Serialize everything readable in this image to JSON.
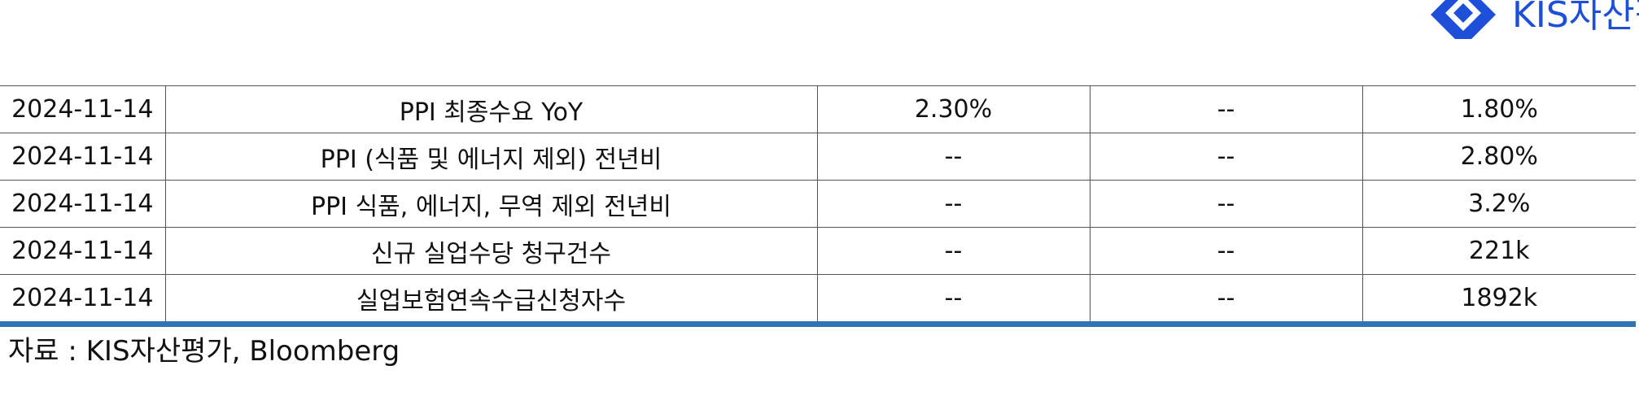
{
  "logo": {
    "text": "KIS자산평가",
    "icon": "kis-diamond-logo-icon",
    "color": "#1d4fd8"
  },
  "table": {
    "rows": [
      [
        "2024-11-14",
        "PPI 최종수요 YoY",
        "2.30%",
        "--",
        "1.80%"
      ],
      [
        "2024-11-14",
        "PPI (식품 및 에너지 제외) 전년비",
        "--",
        "--",
        "2.80%"
      ],
      [
        "2024-11-14",
        "PPI 식품, 에너지, 무역 제외 전년비",
        "--",
        "--",
        "3.2%"
      ],
      [
        "2024-11-14",
        "신규 실업수당 청구건수",
        "--",
        "--",
        "221k"
      ],
      [
        "2024-11-14",
        "실업보험연속수급신청자수",
        "--",
        "--",
        "1892k"
      ]
    ],
    "bottom_rule_color": "#2e74b5"
  },
  "source": "자료 : KIS자산평가, Bloomberg"
}
